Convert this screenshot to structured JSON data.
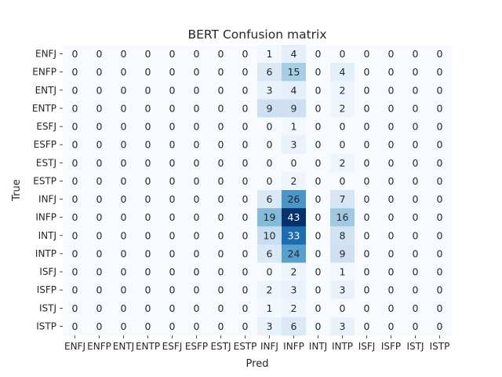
{
  "chart_data": {
    "type": "heatmap",
    "title": "BERT Confusion matrix",
    "xlabel": "Pred",
    "ylabel": "True",
    "x_categories": [
      "ENFJ",
      "ENFP",
      "ENTJ",
      "ENTP",
      "ESFJ",
      "ESFP",
      "ESTJ",
      "ESTP",
      "INFJ",
      "INFP",
      "INTJ",
      "INTP",
      "ISFJ",
      "ISFP",
      "ISTJ",
      "ISTP"
    ],
    "y_categories": [
      "ENFJ",
      "ENFP",
      "ENTJ",
      "ENTP",
      "ESFJ",
      "ESFP",
      "ESTJ",
      "ESTP",
      "INFJ",
      "INFP",
      "INTJ",
      "INTP",
      "ISFJ",
      "ISFP",
      "ISTJ",
      "ISTP"
    ],
    "values": [
      [
        0,
        0,
        0,
        0,
        0,
        0,
        0,
        0,
        1,
        4,
        0,
        0,
        0,
        0,
        0,
        0
      ],
      [
        0,
        0,
        0,
        0,
        0,
        0,
        0,
        0,
        6,
        15,
        0,
        4,
        0,
        0,
        0,
        0
      ],
      [
        0,
        0,
        0,
        0,
        0,
        0,
        0,
        0,
        3,
        4,
        0,
        2,
        0,
        0,
        0,
        0
      ],
      [
        0,
        0,
        0,
        0,
        0,
        0,
        0,
        0,
        9,
        9,
        0,
        2,
        0,
        0,
        0,
        0
      ],
      [
        0,
        0,
        0,
        0,
        0,
        0,
        0,
        0,
        0,
        1,
        0,
        0,
        0,
        0,
        0,
        0
      ],
      [
        0,
        0,
        0,
        0,
        0,
        0,
        0,
        0,
        0,
        3,
        0,
        0,
        0,
        0,
        0,
        0
      ],
      [
        0,
        0,
        0,
        0,
        0,
        0,
        0,
        0,
        0,
        0,
        0,
        2,
        0,
        0,
        0,
        0
      ],
      [
        0,
        0,
        0,
        0,
        0,
        0,
        0,
        0,
        0,
        2,
        0,
        0,
        0,
        0,
        0,
        0
      ],
      [
        0,
        0,
        0,
        0,
        0,
        0,
        0,
        0,
        6,
        26,
        0,
        7,
        0,
        0,
        0,
        0
      ],
      [
        0,
        0,
        0,
        0,
        0,
        0,
        0,
        0,
        19,
        43,
        0,
        16,
        0,
        0,
        0,
        0
      ],
      [
        0,
        0,
        0,
        0,
        0,
        0,
        0,
        0,
        10,
        33,
        0,
        8,
        0,
        0,
        0,
        0
      ],
      [
        0,
        0,
        0,
        0,
        0,
        0,
        0,
        0,
        6,
        24,
        0,
        9,
        0,
        0,
        0,
        0
      ],
      [
        0,
        0,
        0,
        0,
        0,
        0,
        0,
        0,
        0,
        2,
        0,
        1,
        0,
        0,
        0,
        0
      ],
      [
        0,
        0,
        0,
        0,
        0,
        0,
        0,
        0,
        2,
        3,
        0,
        3,
        0,
        0,
        0,
        0
      ],
      [
        0,
        0,
        0,
        0,
        0,
        0,
        0,
        0,
        1,
        2,
        0,
        0,
        0,
        0,
        0,
        0
      ],
      [
        0,
        0,
        0,
        0,
        0,
        0,
        0,
        0,
        3,
        6,
        0,
        3,
        0,
        0,
        0,
        0
      ]
    ],
    "colormap": "Blues",
    "color_low": "#f7fbff",
    "color_high": "#08306b",
    "annotations": true,
    "colorbar": false,
    "grid": false
  }
}
